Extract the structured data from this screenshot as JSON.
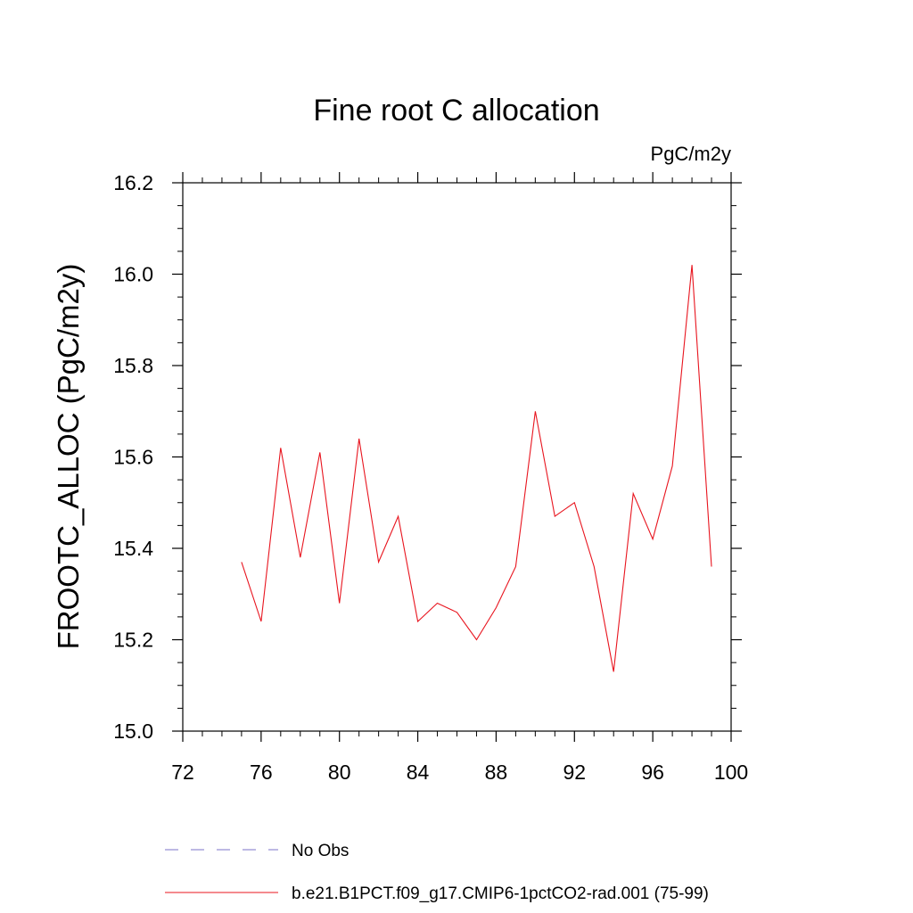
{
  "chart_data": {
    "type": "line",
    "title": "Fine root C allocation",
    "units_label": "PgC/m2y",
    "ylabel": "FROOTC_ALLOC  (PgC/m2y)",
    "xlabel": "",
    "xlim": [
      72,
      100
    ],
    "ylim": [
      15.0,
      16.2
    ],
    "xticks": [
      72,
      76,
      80,
      84,
      88,
      92,
      96,
      100
    ],
    "xtick_labels": [
      "72",
      "76",
      "80",
      "84",
      "88",
      "92",
      "96",
      "100"
    ],
    "yticks": [
      15.0,
      15.2,
      15.4,
      15.6,
      15.8,
      16.0,
      16.2
    ],
    "ytick_labels": [
      "15.0",
      "15.2",
      "15.4",
      "15.6",
      "15.8",
      "16.0",
      "16.2"
    ],
    "grid": false,
    "legend_position": "bottom",
    "series": [
      {
        "name": "b.e21.B1PCT.f09_g17.CMIP6-1pctCO2-rad.001 (75-99)",
        "color": "#e8141e",
        "style": "solid",
        "x": [
          75,
          76,
          77,
          78,
          79,
          80,
          81,
          82,
          83,
          84,
          85,
          86,
          87,
          88,
          89,
          90,
          91,
          92,
          93,
          94,
          95,
          96,
          97,
          98,
          99
        ],
        "values": [
          15.37,
          15.24,
          15.62,
          15.38,
          15.61,
          15.28,
          15.64,
          15.37,
          15.47,
          15.24,
          15.28,
          15.26,
          15.2,
          15.27,
          15.36,
          15.7,
          15.47,
          15.5,
          15.36,
          15.13,
          15.52,
          15.42,
          15.58,
          16.02,
          15.36
        ]
      }
    ],
    "legend": [
      {
        "label": "No Obs",
        "color": "#7b73c8",
        "style": "dashed"
      },
      {
        "label": "b.e21.B1PCT.f09_g17.CMIP6-1pctCO2-rad.001 (75-99)",
        "color": "#e8141e",
        "style": "solid"
      }
    ]
  }
}
